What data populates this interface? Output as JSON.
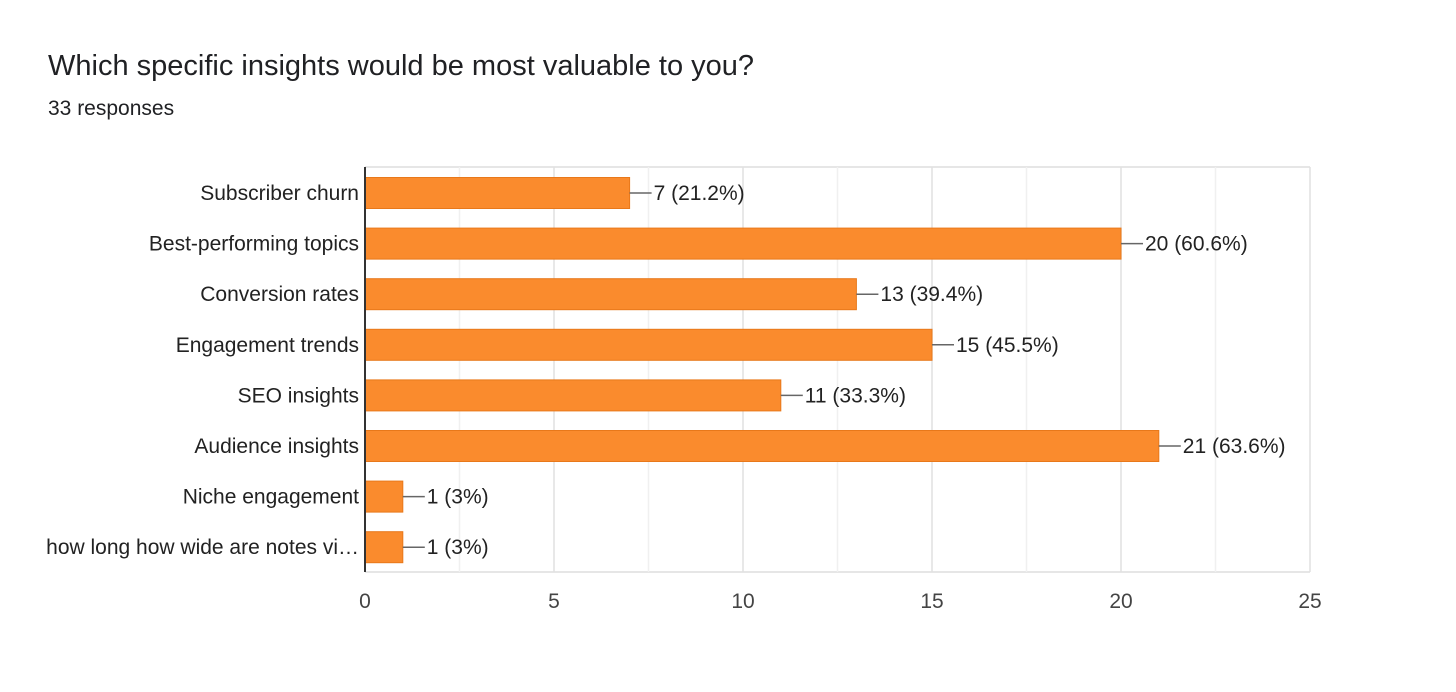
{
  "header": {
    "question": "Which specific insights would be most valuable to you?",
    "responses": "33 responses"
  },
  "colors": {
    "bar": "#fa8b2d",
    "bar_stroke": "#e8781a",
    "grid": "#e6e6e6",
    "axis": "#333333",
    "leader": "#666666"
  },
  "chart_data": {
    "type": "bar",
    "orientation": "horizontal",
    "title": "Which specific insights would be most valuable to you?",
    "subtitle": "33 responses",
    "categories": [
      "Subscriber churn",
      "Best-performing topics",
      "Conversion rates",
      "Engagement trends",
      "SEO insights",
      "Audience insights",
      "Niche engagement",
      "how long how wide are notes vi…"
    ],
    "values": [
      7,
      20,
      13,
      15,
      11,
      21,
      1,
      1
    ],
    "data_labels": [
      "7 (21.2%)",
      "20 (60.6%)",
      "13 (39.4%)",
      "15 (45.5%)",
      "11 (33.3%)",
      "21 (63.6%)",
      "1 (3%)",
      "1 (3%)"
    ],
    "xlim": [
      0,
      25
    ],
    "xticks": [
      0,
      5,
      10,
      15,
      20,
      25
    ],
    "grid": true,
    "legend": "none"
  }
}
